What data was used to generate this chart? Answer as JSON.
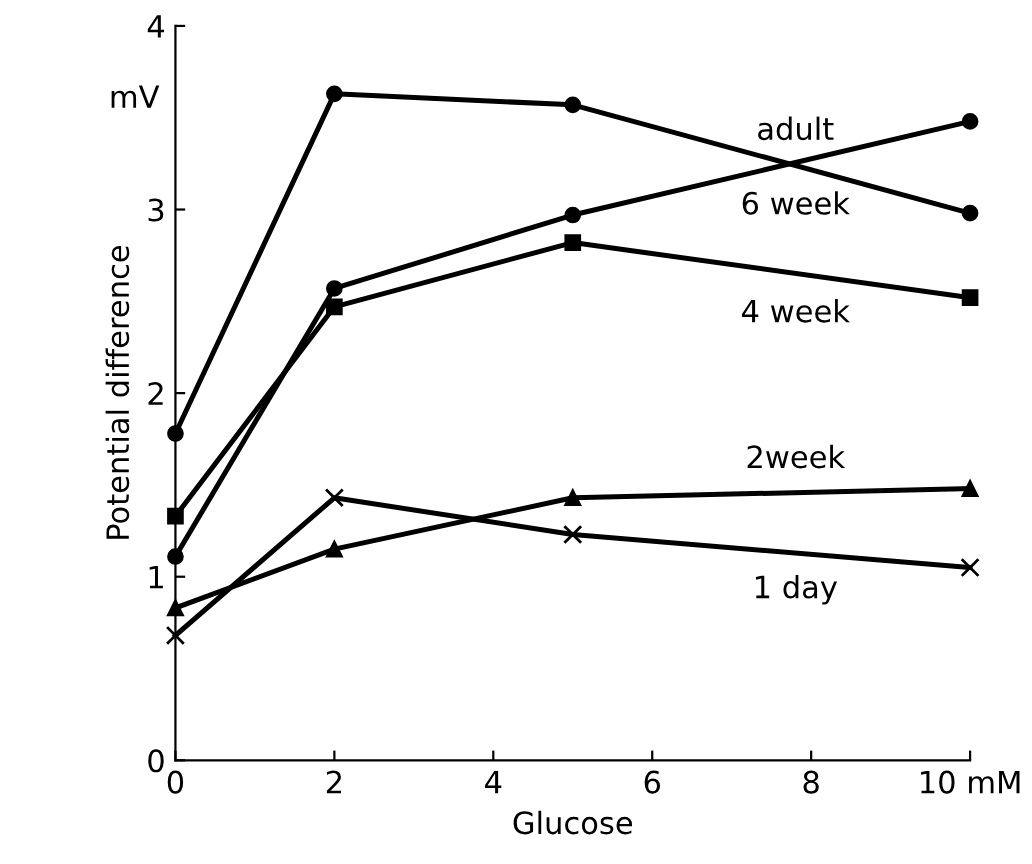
{
  "chart_data": {
    "type": "line",
    "xlabel": "Glucose",
    "ylabel": "Potential difference",
    "annotations": [
      "mV"
    ],
    "x": [
      0,
      2,
      5,
      10
    ],
    "series": [
      {
        "name": "adult",
        "color": "#000000",
        "marker": "circle",
        "values": [
          1.11,
          2.57,
          2.97,
          3.48
        ]
      },
      {
        "name": "6 week",
        "color": "#000000",
        "marker": "circle",
        "values": [
          1.78,
          3.63,
          3.57,
          2.98
        ]
      },
      {
        "name": "4 week",
        "color": "#000000",
        "marker": "square",
        "values": [
          1.33,
          2.47,
          2.82,
          2.52
        ]
      },
      {
        "name": "2week",
        "color": "#000000",
        "marker": "triangle",
        "values": [
          0.83,
          1.15,
          1.43,
          1.48
        ]
      },
      {
        "name": "1 day",
        "color": "#000000",
        "marker": "cross",
        "values": [
          0.68,
          1.43,
          1.23,
          1.05
        ]
      }
    ],
    "xlim": [
      0,
      10
    ],
    "ylim": [
      0,
      4
    ],
    "xticks": [
      0,
      2,
      4,
      6,
      8,
      {
        "value": 10,
        "label": "10 mM"
      }
    ],
    "yticks": [
      0,
      1,
      2,
      3,
      4
    ],
    "grid": false,
    "legend": false,
    "line_style": "solid"
  }
}
